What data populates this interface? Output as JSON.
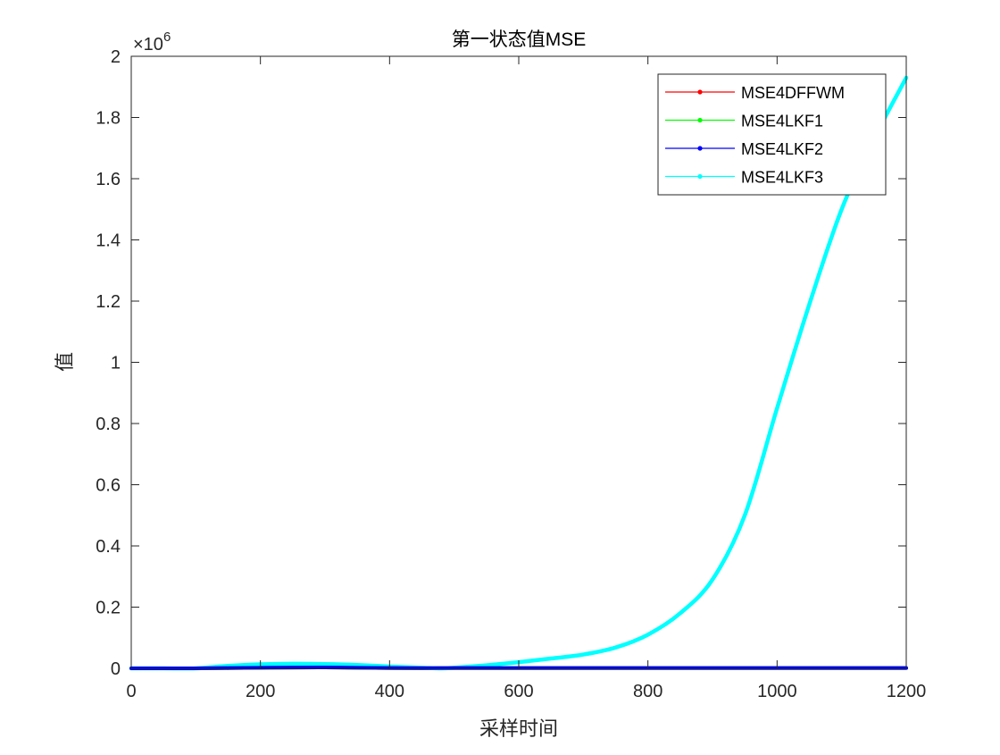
{
  "chart_data": {
    "type": "line",
    "title": "第一状态值MSE",
    "xlabel": "采样时间",
    "ylabel": "值",
    "xlim": [
      0,
      1200
    ],
    "ylim": [
      0,
      2
    ],
    "y_exponent_label": "×10",
    "y_exponent_power": "6",
    "x_ticks": [
      0,
      200,
      400,
      600,
      800,
      1000,
      1200
    ],
    "y_ticks": [
      0,
      0.2,
      0.4,
      0.6,
      0.8,
      1,
      1.2,
      1.4,
      1.6,
      1.8,
      2
    ],
    "x_tick_labels": [
      "0",
      "200",
      "400",
      "600",
      "800",
      "1000",
      "1200"
    ],
    "y_tick_labels": [
      "0",
      "0.2",
      "0.4",
      "0.6",
      "0.8",
      "1",
      "1.2",
      "1.4",
      "1.6",
      "1.8",
      "2"
    ],
    "grid": false,
    "legend_position": "top-right",
    "series": [
      {
        "name": "MSE4DFFWM",
        "color": "#ff0000",
        "x": [
          0,
          100,
          200,
          300,
          400,
          500,
          600,
          700,
          800,
          900,
          1000,
          1100,
          1200
        ],
        "y": [
          0,
          0,
          0.002,
          0.003,
          0.001,
          0.001,
          0.001,
          0.001,
          0.001,
          0.001,
          0.001,
          0.001,
          0.001
        ]
      },
      {
        "name": "MSE4LKF1",
        "color": "#00ff00",
        "x": [
          0,
          100,
          200,
          300,
          400,
          500,
          600,
          700,
          800,
          900,
          1000,
          1100,
          1200
        ],
        "y": [
          0,
          0,
          0.002,
          0.003,
          0.001,
          0.001,
          0.001,
          0.001,
          0.001,
          0.001,
          0.001,
          0.001,
          0.001
        ]
      },
      {
        "name": "MSE4LKF2",
        "color": "#0000ff",
        "x": [
          0,
          100,
          200,
          300,
          400,
          500,
          600,
          700,
          800,
          900,
          1000,
          1100,
          1200
        ],
        "y": [
          0,
          0,
          0.002,
          0.003,
          0.001,
          0.001,
          0.001,
          0.001,
          0.001,
          0.001,
          0.001,
          0.001,
          0.001
        ]
      },
      {
        "name": "MSE4LKF3",
        "color": "#00ffff",
        "x": [
          0,
          50,
          100,
          150,
          200,
          250,
          300,
          350,
          400,
          450,
          480,
          500,
          550,
          600,
          650,
          700,
          750,
          800,
          850,
          900,
          950,
          1000,
          1050,
          1100,
          1150,
          1200
        ],
        "y": [
          0,
          0,
          0,
          0.008,
          0.013,
          0.015,
          0.014,
          0.011,
          0.006,
          0.002,
          0.0,
          0.002,
          0.01,
          0.02,
          0.032,
          0.045,
          0.068,
          0.11,
          0.18,
          0.29,
          0.5,
          0.85,
          1.19,
          1.5,
          1.73,
          1.93
        ]
      }
    ]
  }
}
